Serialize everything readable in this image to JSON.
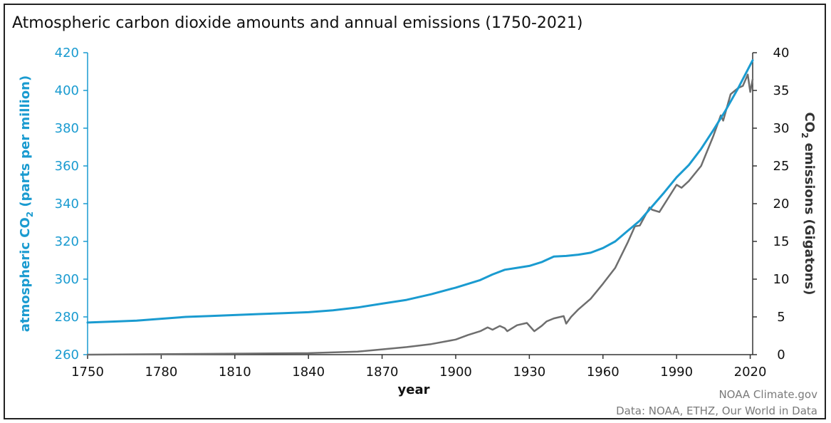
{
  "chart_data": {
    "type": "line",
    "title": "Atmospheric carbon dioxide amounts and annual emissions (1750-2021)",
    "xlabel": "year",
    "ylabel_left_prefix": "atmospheric CO",
    "ylabel_left_sub": "2",
    "ylabel_left_suffix": " (parts per million)",
    "ylabel_right_prefix": "CO",
    "ylabel_right_sub": "2",
    "ylabel_right_suffix": " emissions (Gigatons)",
    "xlim": [
      1750,
      2021
    ],
    "ylim_left": [
      260,
      420
    ],
    "ylim_right": [
      0,
      40
    ],
    "x_ticks": [
      "1750",
      "1780",
      "1810",
      "1840",
      "1870",
      "1900",
      "1930",
      "1960",
      "1990",
      "2020"
    ],
    "y_left_ticks": [
      "260",
      "280",
      "300",
      "320",
      "340",
      "360",
      "380",
      "400",
      "420"
    ],
    "y_right_ticks": [
      "0",
      "5",
      "10",
      "15",
      "20",
      "25",
      "30",
      "35",
      "40"
    ],
    "colors": {
      "co2_ppm": "#1a9bd0",
      "emissions": "#6e6e6e",
      "left_axis": "#1a9bd0",
      "right_axis": "#333333"
    },
    "series": [
      {
        "axis": "left",
        "x": [
          1750,
          1760,
          1770,
          1780,
          1790,
          1800,
          1810,
          1820,
          1830,
          1840,
          1850,
          1860,
          1870,
          1880,
          1890,
          1900,
          1910,
          1915,
          1920,
          1925,
          1930,
          1935,
          1940,
          1945,
          1950,
          1955,
          1960,
          1965,
          1970,
          1975,
          1980,
          1985,
          1990,
          1995,
          2000,
          2005,
          2010,
          2015,
          2021
        ],
        "values": [
          277,
          277.5,
          278,
          279,
          280,
          280.5,
          281,
          281.5,
          282,
          282.5,
          283.5,
          285,
          287,
          289,
          292,
          295.5,
          299.5,
          302.5,
          305,
          306,
          307,
          309,
          312,
          312.3,
          313,
          314,
          316.5,
          320,
          325.5,
          331,
          338.5,
          346,
          354,
          360.5,
          369,
          379,
          389.5,
          401,
          416
        ]
      },
      {
        "axis": "right",
        "x": [
          1750,
          1800,
          1840,
          1860,
          1870,
          1880,
          1890,
          1900,
          1905,
          1910,
          1913,
          1915,
          1918,
          1920,
          1921,
          1925,
          1929,
          1932,
          1935,
          1937,
          1940,
          1944,
          1945,
          1947,
          1950,
          1955,
          1960,
          1965,
          1970,
          1973,
          1975,
          1979,
          1980,
          1983,
          1990,
          1992,
          1995,
          2000,
          2005,
          2008,
          2009,
          2012,
          2015,
          2017,
          2019,
          2020,
          2021
        ],
        "values": [
          0,
          0.1,
          0.2,
          0.4,
          0.7,
          1.0,
          1.4,
          2.0,
          2.6,
          3.1,
          3.6,
          3.3,
          3.8,
          3.5,
          3.1,
          3.9,
          4.2,
          3.1,
          3.8,
          4.4,
          4.8,
          5.1,
          4.1,
          5.0,
          6.0,
          7.4,
          9.4,
          11.5,
          14.8,
          17.0,
          17.1,
          19.5,
          19.2,
          18.9,
          22.5,
          22.1,
          23.0,
          25.0,
          29.0,
          31.7,
          31.0,
          34.5,
          35.3,
          35.6,
          37.1,
          34.8,
          36.5
        ]
      }
    ],
    "source_line1": "NOAA Climate.gov",
    "source_line2": "Data: NOAA, ETHZ, Our World in Data"
  }
}
